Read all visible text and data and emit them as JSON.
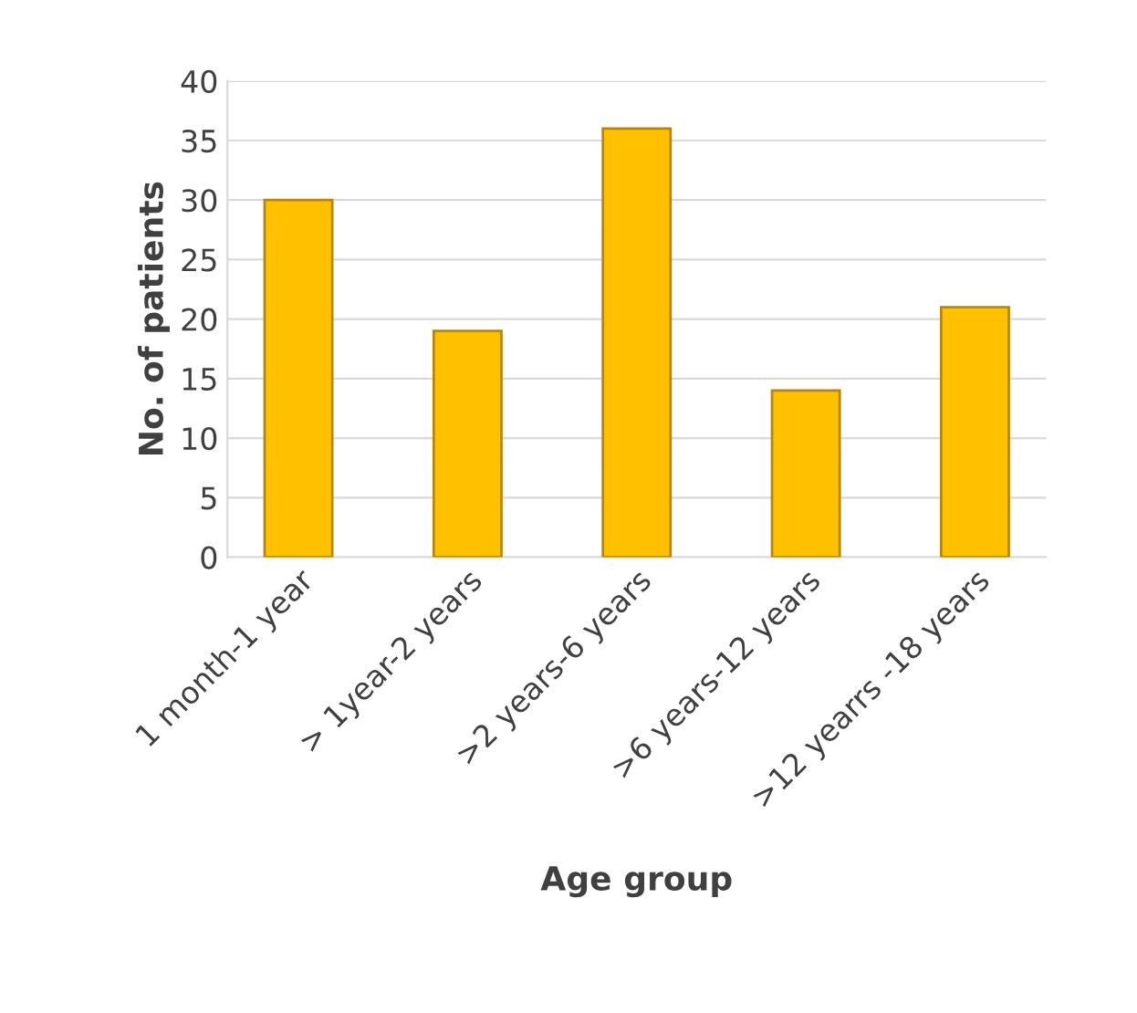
{
  "chart_data": {
    "type": "bar",
    "xlabel": "Age group",
    "ylabel": "No. of patients",
    "categories": [
      "1 month-1 year",
      "> 1year-2 years",
      ">2 years-6 years",
      ">6 years-12 years",
      ">12 yearrs -18 years"
    ],
    "values": [
      30,
      19,
      36,
      14,
      21
    ],
    "color": "#ffc000",
    "ylim": [
      0,
      40
    ],
    "yticks": [
      0,
      5,
      10,
      15,
      20,
      25,
      30,
      35,
      40
    ],
    "grid": "y"
  }
}
